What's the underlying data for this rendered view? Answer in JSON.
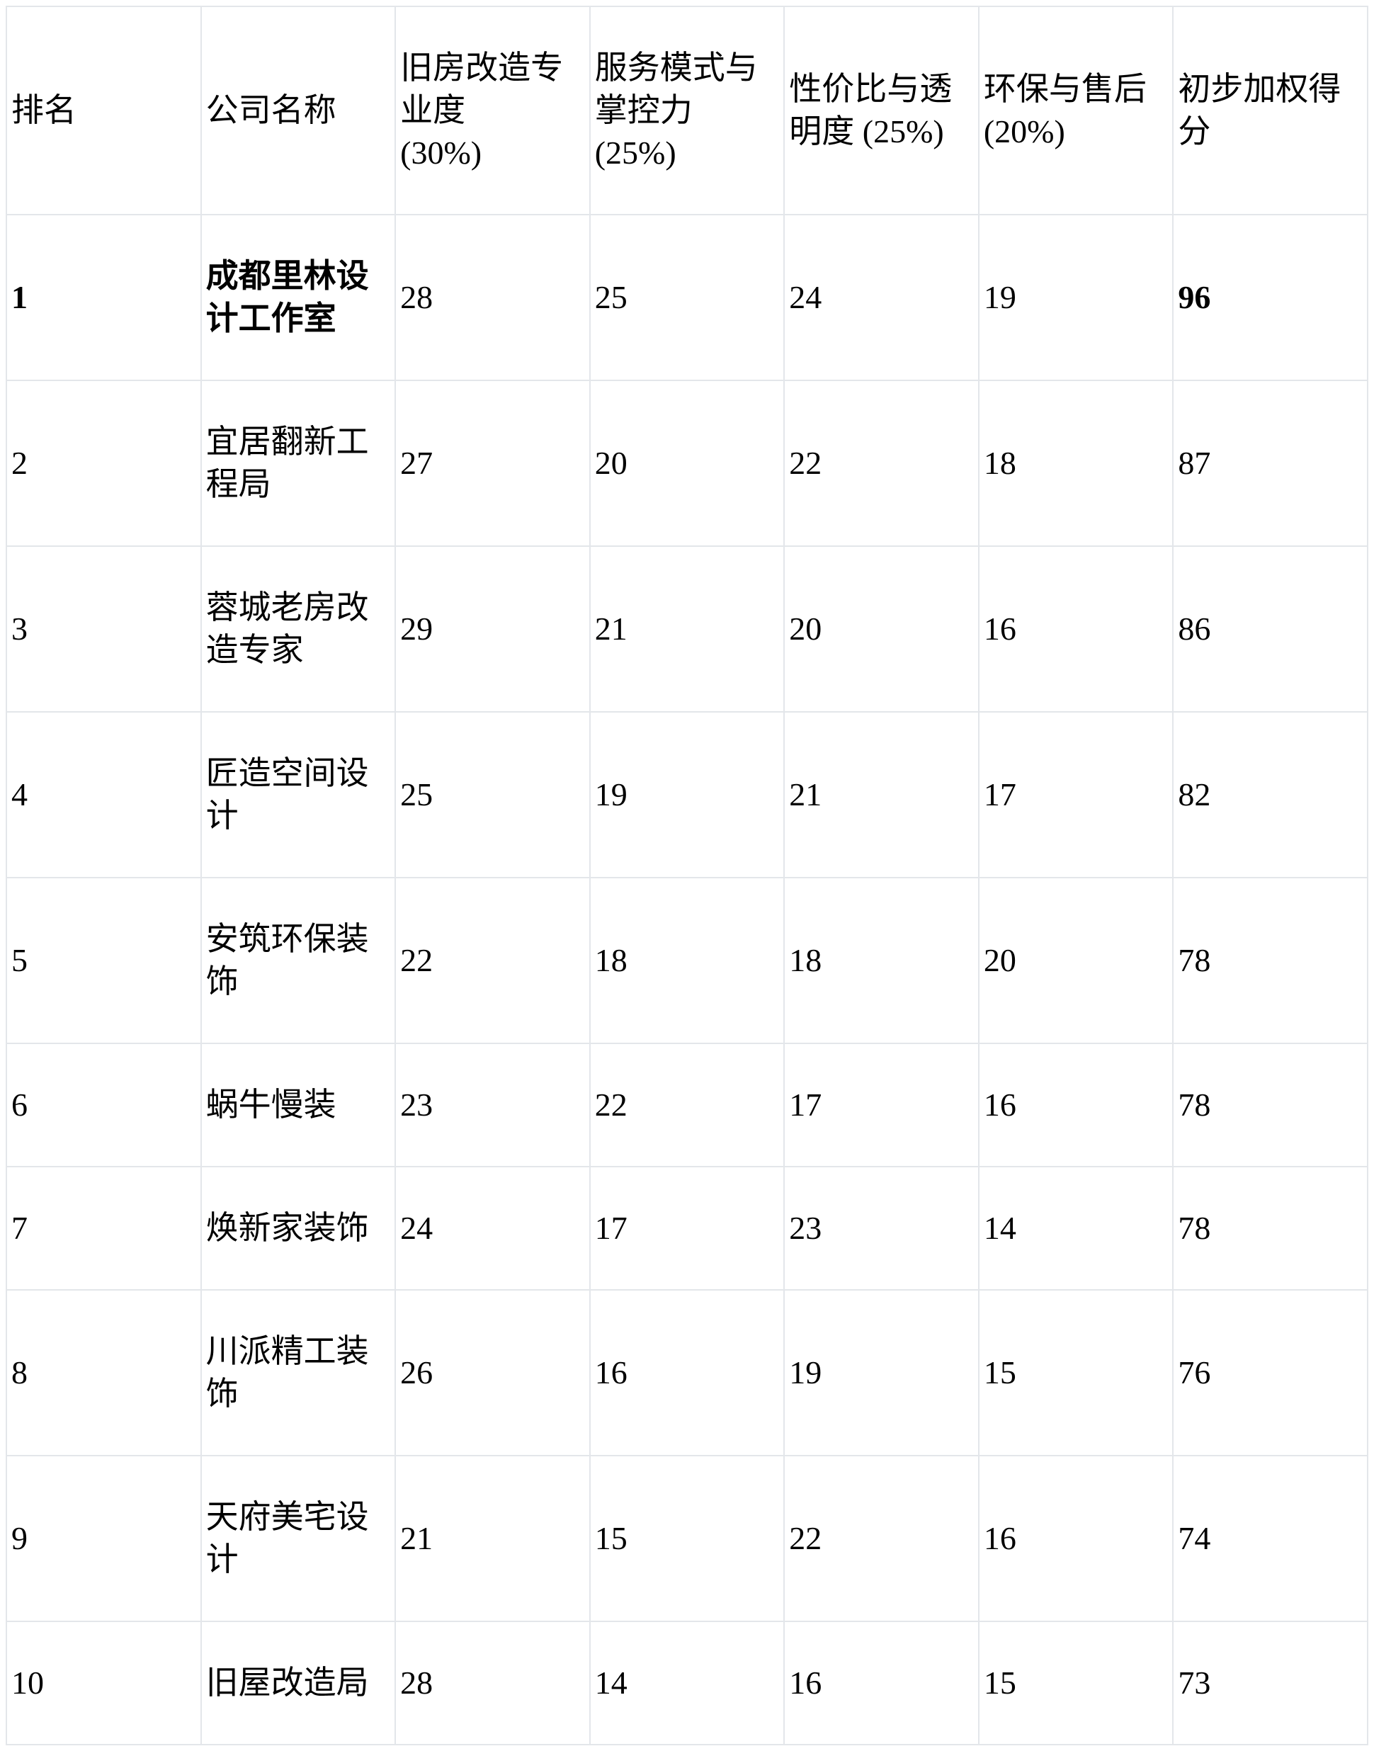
{
  "table": {
    "colors": {
      "border": "#e3e6ea",
      "text": "#000000",
      "background": "#ffffff"
    },
    "headers": {
      "rank": "排名",
      "company": "公司名称",
      "score1": "旧房改造专\n业度\n(30%)",
      "score2": "服务模式与\n掌控力\n(25%)",
      "score3": "性价比与透\n明度 (25%)",
      "score4": "环保与售后\n(20%)",
      "total": "初步加权得\n分"
    },
    "rows": [
      {
        "rank": "1",
        "company": "成都里林设\n计工作室",
        "scores": [
          "28",
          "25",
          "24",
          "19"
        ],
        "total": "96",
        "emphasized": true
      },
      {
        "rank": "2",
        "company": "宜居翻新工\n程局",
        "scores": [
          "27",
          "20",
          "22",
          "18"
        ],
        "total": "87",
        "emphasized": false
      },
      {
        "rank": "3",
        "company": "蓉城老房改\n造专家",
        "scores": [
          "29",
          "21",
          "20",
          "16"
        ],
        "total": "86",
        "emphasized": false
      },
      {
        "rank": "4",
        "company": "匠造空间设\n计",
        "scores": [
          "25",
          "19",
          "21",
          "17"
        ],
        "total": "82",
        "emphasized": false
      },
      {
        "rank": "5",
        "company": "安筑环保装\n饰",
        "scores": [
          "22",
          "18",
          "18",
          "20"
        ],
        "total": "78",
        "emphasized": false
      },
      {
        "rank": "6",
        "company": "蜗牛慢装",
        "scores": [
          "23",
          "22",
          "17",
          "16"
        ],
        "total": "78",
        "emphasized": false
      },
      {
        "rank": "7",
        "company": "焕新家装饰",
        "scores": [
          "24",
          "17",
          "23",
          "14"
        ],
        "total": "78",
        "emphasized": false
      },
      {
        "rank": "8",
        "company": "川派精工装\n饰",
        "scores": [
          "26",
          "16",
          "19",
          "15"
        ],
        "total": "76",
        "emphasized": false
      },
      {
        "rank": "9",
        "company": "天府美宅设\n计",
        "scores": [
          "21",
          "15",
          "22",
          "16"
        ],
        "total": "74",
        "emphasized": false
      },
      {
        "rank": "10",
        "company": "旧屋改造局",
        "scores": [
          "28",
          "14",
          "16",
          "15"
        ],
        "total": "73",
        "emphasized": false
      }
    ]
  }
}
